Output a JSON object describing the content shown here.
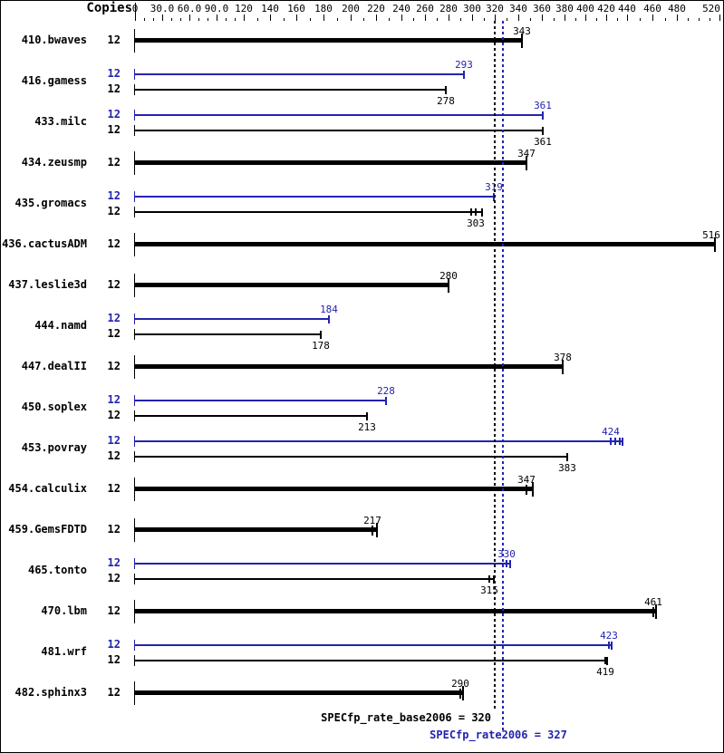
{
  "header": {
    "copies_label": "Copies"
  },
  "colors": {
    "peak_blue": "#2323af",
    "base_black": "#000000"
  },
  "axis": {
    "labels": [
      {
        "v": 0,
        "t": "0"
      },
      {
        "v": 30,
        "t": "30.0"
      },
      {
        "v": 60,
        "t": "60.0"
      },
      {
        "v": 90,
        "t": "90.0"
      },
      {
        "v": 120,
        "t": "120"
      },
      {
        "v": 140,
        "t": "140"
      },
      {
        "v": 160,
        "t": "160"
      },
      {
        "v": 180,
        "t": "180"
      },
      {
        "v": 200,
        "t": "200"
      },
      {
        "v": 220,
        "t": "220"
      },
      {
        "v": 240,
        "t": "240"
      },
      {
        "v": 260,
        "t": "260"
      },
      {
        "v": 280,
        "t": "280"
      },
      {
        "v": 300,
        "t": "300"
      },
      {
        "v": 320,
        "t": "320"
      },
      {
        "v": 340,
        "t": "340"
      },
      {
        "v": 360,
        "t": "360"
      },
      {
        "v": 380,
        "t": "380"
      },
      {
        "v": 400,
        "t": "400"
      },
      {
        "v": 420,
        "t": "420"
      },
      {
        "v": 440,
        "t": "440"
      },
      {
        "v": 460,
        "t": "460"
      },
      {
        "v": 480,
        "t": "480"
      },
      {
        "v": 520,
        "t": "520"
      }
    ],
    "range": [
      0,
      520
    ]
  },
  "chart_data": {
    "type": "bar",
    "orientation": "horizontal",
    "legend": "blue bars = peak (SPECfp_rate2006), black bars = base (SPECfp_rate_base2006)",
    "benchmarks": [
      {
        "name": "410.bwaves",
        "bars": [
          {
            "kind": "base",
            "copies": "12",
            "value": 343,
            "thick": true
          }
        ]
      },
      {
        "name": "416.gamess",
        "bars": [
          {
            "kind": "peak",
            "copies": "12",
            "value": 293
          },
          {
            "kind": "base",
            "copies": "12",
            "value": 278
          }
        ]
      },
      {
        "name": "433.milc",
        "bars": [
          {
            "kind": "peak",
            "copies": "12",
            "value": 361
          },
          {
            "kind": "base",
            "copies": "12",
            "value": 361
          }
        ]
      },
      {
        "name": "434.zeusmp",
        "bars": [
          {
            "kind": "base",
            "copies": "12",
            "value": 347,
            "thick": true
          }
        ]
      },
      {
        "name": "435.gromacs",
        "bars": [
          {
            "kind": "peak",
            "copies": "12",
            "value": 319
          },
          {
            "kind": "base",
            "copies": "12",
            "value": 303,
            "end": 309,
            "runs": [
              299
            ]
          }
        ]
      },
      {
        "name": "436.cactusADM",
        "bars": [
          {
            "kind": "base",
            "copies": "12",
            "value": 516,
            "thick": true
          }
        ]
      },
      {
        "name": "437.leslie3d",
        "bars": [
          {
            "kind": "base",
            "copies": "12",
            "value": 280,
            "thick": true
          }
        ]
      },
      {
        "name": "444.namd",
        "bars": [
          {
            "kind": "peak",
            "copies": "12",
            "value": 184
          },
          {
            "kind": "base",
            "copies": "12",
            "value": 178
          }
        ]
      },
      {
        "name": "447.dealII",
        "bars": [
          {
            "kind": "base",
            "copies": "12",
            "value": 378,
            "thick": true
          }
        ]
      },
      {
        "name": "450.soplex",
        "bars": [
          {
            "kind": "peak",
            "copies": "12",
            "value": 228
          },
          {
            "kind": "base",
            "copies": "12",
            "value": 213
          }
        ]
      },
      {
        "name": "453.povray",
        "bars": [
          {
            "kind": "peak",
            "copies": "12",
            "value": 424,
            "end": 436,
            "runs": [
              429,
              433
            ]
          },
          {
            "kind": "base",
            "copies": "12",
            "value": 383
          }
        ]
      },
      {
        "name": "454.calculix",
        "bars": [
          {
            "kind": "base",
            "copies": "12",
            "value": 347,
            "end": 352,
            "thick": true
          }
        ]
      },
      {
        "name": "459.GemsFDTD",
        "bars": [
          {
            "kind": "base",
            "copies": "12",
            "value": 217,
            "end": 221,
            "thick": true
          }
        ]
      },
      {
        "name": "465.tonto",
        "bars": [
          {
            "kind": "peak",
            "copies": "12",
            "value": 330,
            "end": 333
          },
          {
            "kind": "base",
            "copies": "12",
            "value": 315,
            "end": 319
          }
        ]
      },
      {
        "name": "470.lbm",
        "bars": [
          {
            "kind": "base",
            "copies": "12",
            "value": 461,
            "end": 463,
            "thick": true
          }
        ]
      },
      {
        "name": "481.wrf",
        "bars": [
          {
            "kind": "peak",
            "copies": "12",
            "value": 423,
            "end": 425
          },
          {
            "kind": "base",
            "copies": "12",
            "value": 419,
            "end": 421
          }
        ]
      },
      {
        "name": "482.sphinx3",
        "bars": [
          {
            "kind": "base",
            "copies": "12",
            "value": 290,
            "end": 292,
            "thick": true
          }
        ]
      }
    ],
    "summary": {
      "base": {
        "label": "SPECfp_rate_base2006 = 320",
        "value": 320
      },
      "peak": {
        "label": "SPECfp_rate2006 = 327",
        "value": 327
      }
    }
  }
}
